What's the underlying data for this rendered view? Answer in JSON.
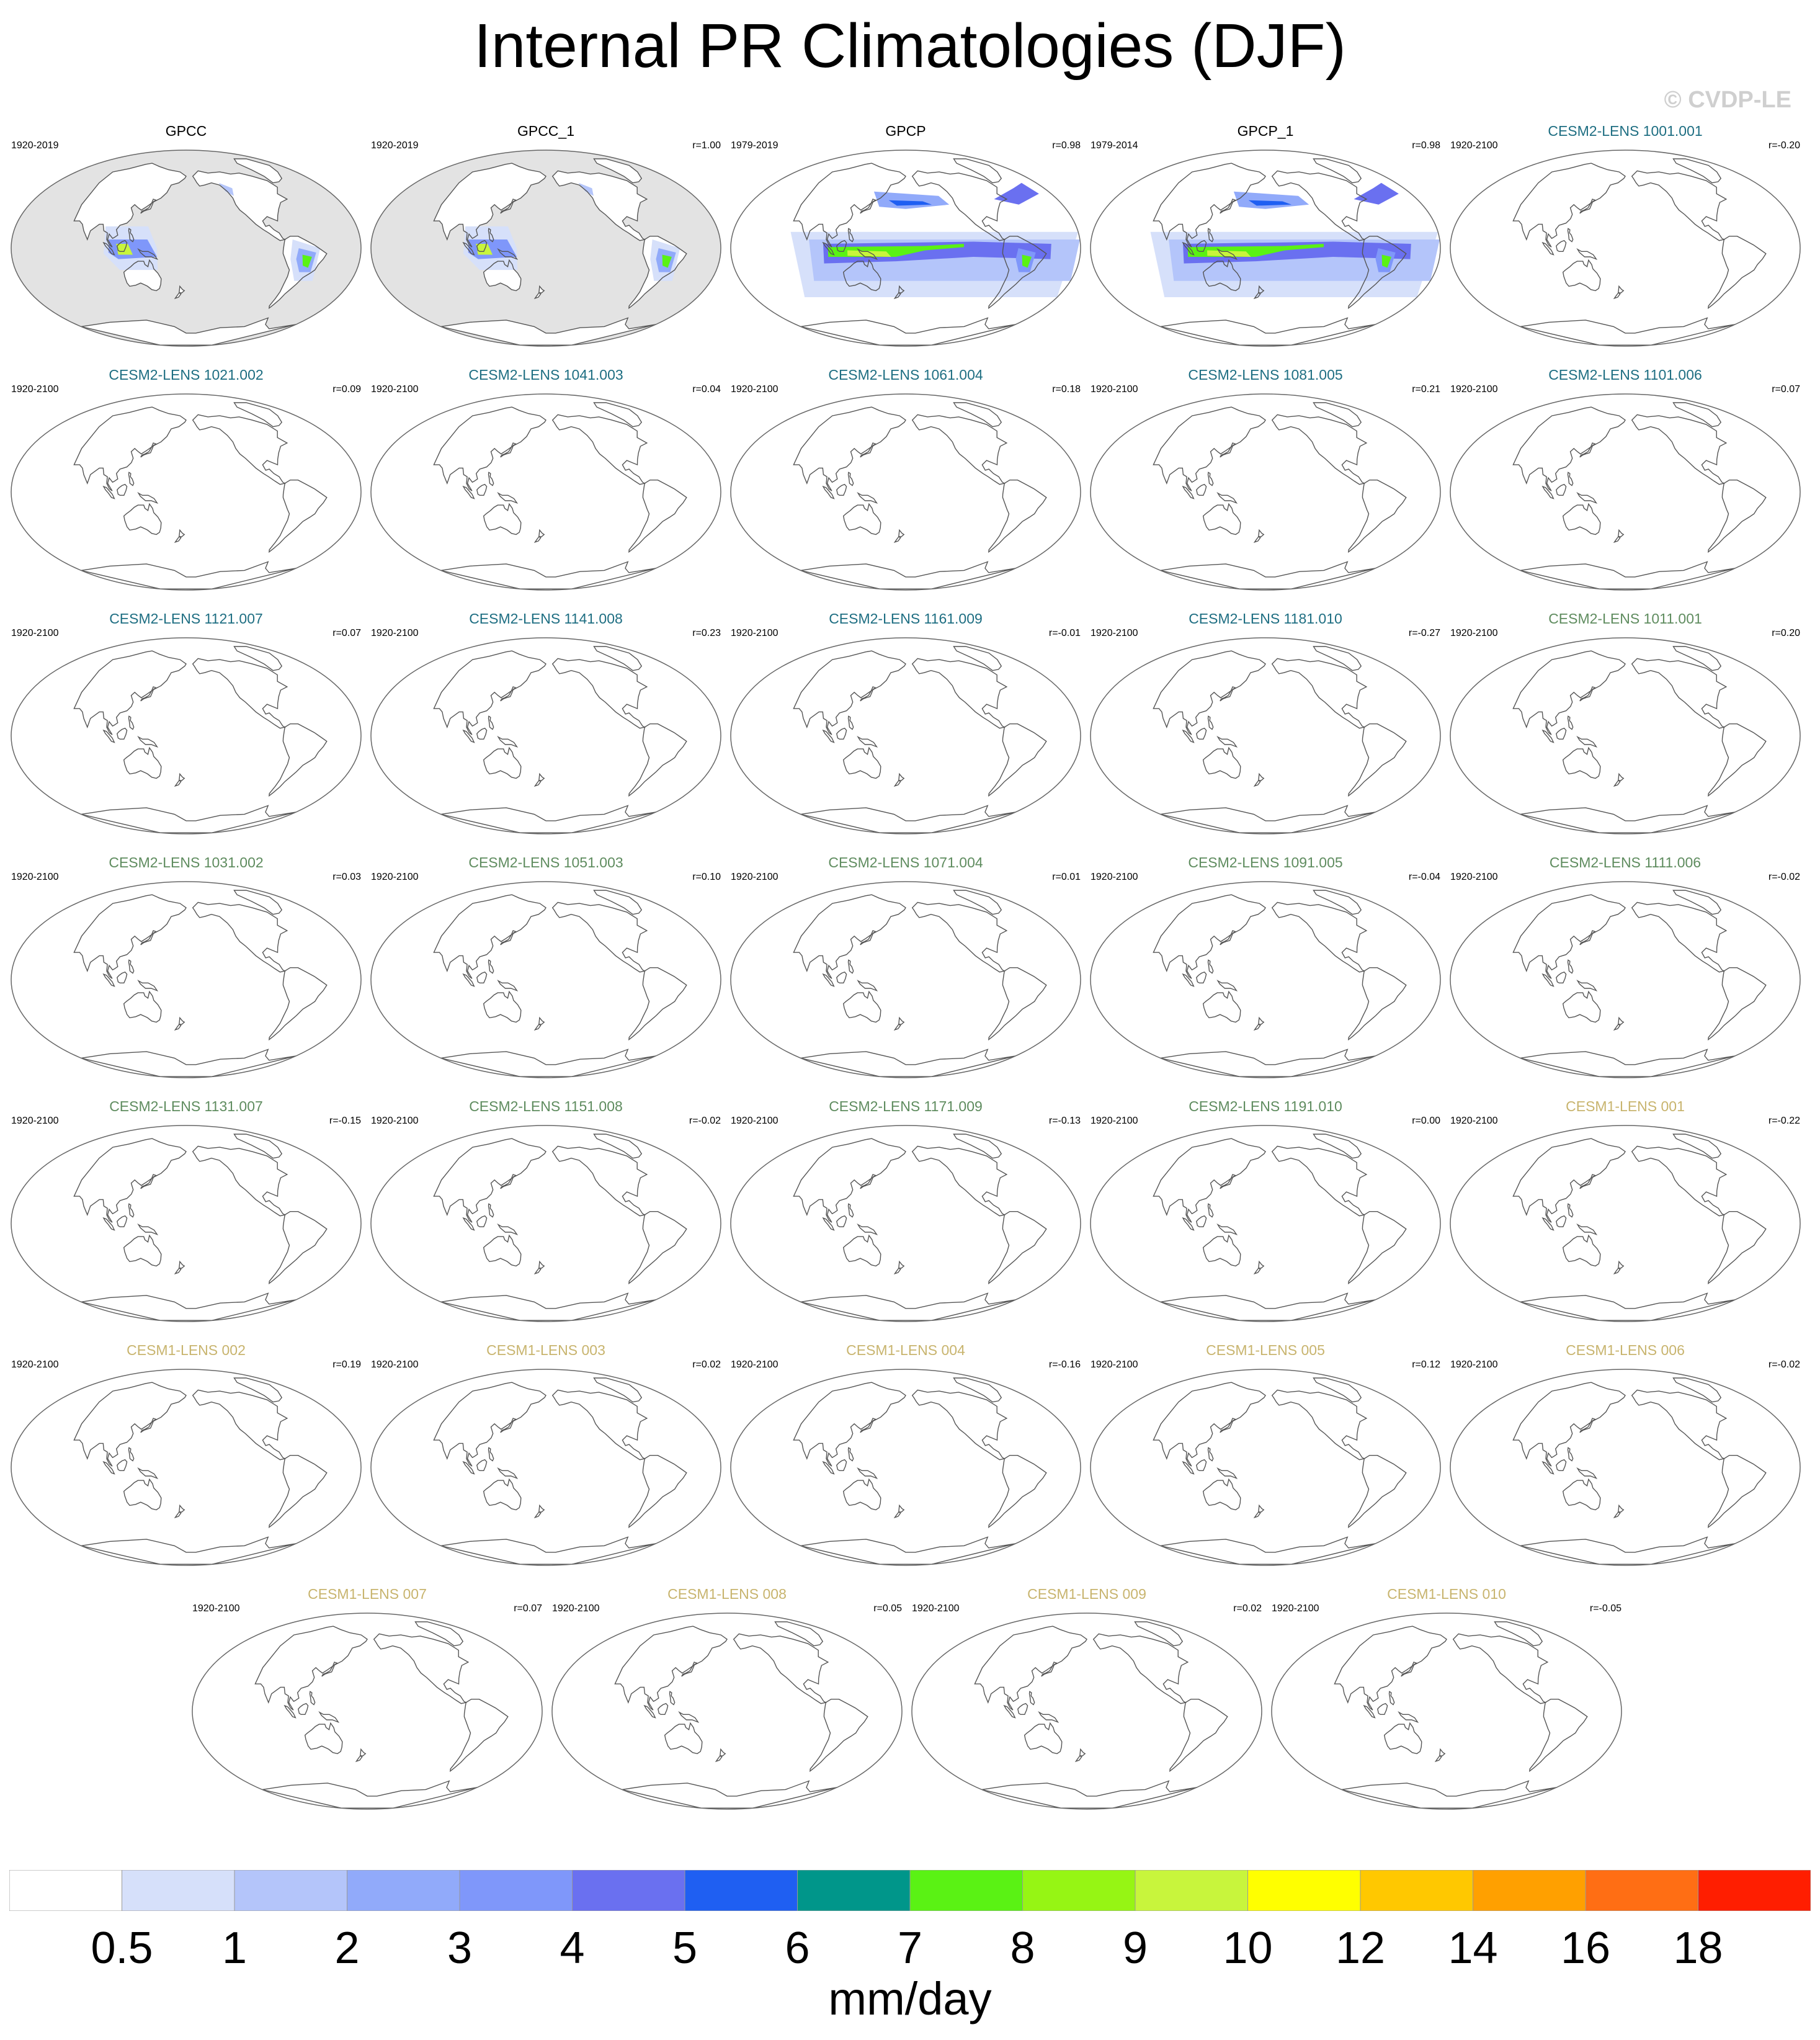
{
  "title": "Internal PR Climatologies (DJF)",
  "copyright": "© CVDP-LE",
  "colors": {
    "land": "#d4d4d4",
    "ocean_fill": "#e3e3e3",
    "coast": "#555555",
    "obs_title": "#000000",
    "cesm2_first": "#1e6e82",
    "cesm2_second": "#5f8c5f",
    "cesm1": "#c8b46e"
  },
  "panels": [
    {
      "title": "GPCC",
      "years": "1920-2019",
      "r": "",
      "group": "obs",
      "pattern": "gpcc"
    },
    {
      "title": "GPCC_1",
      "years": "1920-2019",
      "r": "r=1.00",
      "group": "obs",
      "pattern": "gpcc"
    },
    {
      "title": "GPCP",
      "years": "1979-2019",
      "r": "r=0.98",
      "group": "obs",
      "pattern": "gpcp"
    },
    {
      "title": "GPCP_1",
      "years": "1979-2014",
      "r": "r=0.98",
      "group": "obs",
      "pattern": "gpcp"
    },
    {
      "title": "CESM2-LENS 1001.001",
      "years": "1920-2100",
      "r": "r=-0.20",
      "group": "cesm2a",
      "pattern": "blank"
    },
    {
      "title": "CESM2-LENS 1021.002",
      "years": "1920-2100",
      "r": "r=0.09",
      "group": "cesm2a",
      "pattern": "blank"
    },
    {
      "title": "CESM2-LENS 1041.003",
      "years": "1920-2100",
      "r": "r=0.04",
      "group": "cesm2a",
      "pattern": "blank"
    },
    {
      "title": "CESM2-LENS 1061.004",
      "years": "1920-2100",
      "r": "r=0.18",
      "group": "cesm2a",
      "pattern": "blank"
    },
    {
      "title": "CESM2-LENS 1081.005",
      "years": "1920-2100",
      "r": "r=0.21",
      "group": "cesm2a",
      "pattern": "blank"
    },
    {
      "title": "CESM2-LENS 1101.006",
      "years": "1920-2100",
      "r": "r=0.07",
      "group": "cesm2a",
      "pattern": "blank"
    },
    {
      "title": "CESM2-LENS 1121.007",
      "years": "1920-2100",
      "r": "r=0.07",
      "group": "cesm2a",
      "pattern": "blank"
    },
    {
      "title": "CESM2-LENS 1141.008",
      "years": "1920-2100",
      "r": "r=0.23",
      "group": "cesm2a",
      "pattern": "blank"
    },
    {
      "title": "CESM2-LENS 1161.009",
      "years": "1920-2100",
      "r": "r=-0.01",
      "group": "cesm2a",
      "pattern": "blank"
    },
    {
      "title": "CESM2-LENS 1181.010",
      "years": "1920-2100",
      "r": "r=-0.27",
      "group": "cesm2a",
      "pattern": "blank"
    },
    {
      "title": "CESM2-LENS 1011.001",
      "years": "1920-2100",
      "r": "r=0.20",
      "group": "cesm2b",
      "pattern": "blank"
    },
    {
      "title": "CESM2-LENS 1031.002",
      "years": "1920-2100",
      "r": "r=0.03",
      "group": "cesm2b",
      "pattern": "blank"
    },
    {
      "title": "CESM2-LENS 1051.003",
      "years": "1920-2100",
      "r": "r=0.10",
      "group": "cesm2b",
      "pattern": "blank"
    },
    {
      "title": "CESM2-LENS 1071.004",
      "years": "1920-2100",
      "r": "r=0.01",
      "group": "cesm2b",
      "pattern": "blank"
    },
    {
      "title": "CESM2-LENS 1091.005",
      "years": "1920-2100",
      "r": "r=-0.04",
      "group": "cesm2b",
      "pattern": "blank"
    },
    {
      "title": "CESM2-LENS 1111.006",
      "years": "1920-2100",
      "r": "r=-0.02",
      "group": "cesm2b",
      "pattern": "blank"
    },
    {
      "title": "CESM2-LENS 1131.007",
      "years": "1920-2100",
      "r": "r=-0.15",
      "group": "cesm2b",
      "pattern": "blank"
    },
    {
      "title": "CESM2-LENS 1151.008",
      "years": "1920-2100",
      "r": "r=-0.02",
      "group": "cesm2b",
      "pattern": "blank"
    },
    {
      "title": "CESM2-LENS 1171.009",
      "years": "1920-2100",
      "r": "r=-0.13",
      "group": "cesm2b",
      "pattern": "blank"
    },
    {
      "title": "CESM2-LENS 1191.010",
      "years": "1920-2100",
      "r": "r=0.00",
      "group": "cesm2b",
      "pattern": "blank"
    },
    {
      "title": "CESM1-LENS 001",
      "years": "1920-2100",
      "r": "r=-0.22",
      "group": "cesm1",
      "pattern": "blank"
    },
    {
      "title": "CESM1-LENS 002",
      "years": "1920-2100",
      "r": "r=0.19",
      "group": "cesm1",
      "pattern": "blank"
    },
    {
      "title": "CESM1-LENS 003",
      "years": "1920-2100",
      "r": "r=0.02",
      "group": "cesm1",
      "pattern": "blank"
    },
    {
      "title": "CESM1-LENS 004",
      "years": "1920-2100",
      "r": "r=-0.16",
      "group": "cesm1",
      "pattern": "blank"
    },
    {
      "title": "CESM1-LENS 005",
      "years": "1920-2100",
      "r": "r=0.12",
      "group": "cesm1",
      "pattern": "blank"
    },
    {
      "title": "CESM1-LENS 006",
      "years": "1920-2100",
      "r": "r=-0.02",
      "group": "cesm1",
      "pattern": "blank"
    },
    {
      "title": "CESM1-LENS 007",
      "years": "1920-2100",
      "r": "r=0.07",
      "group": "cesm1",
      "pattern": "blank"
    },
    {
      "title": "CESM1-LENS 008",
      "years": "1920-2100",
      "r": "r=0.05",
      "group": "cesm1",
      "pattern": "blank"
    },
    {
      "title": "CESM1-LENS 009",
      "years": "1920-2100",
      "r": "r=0.02",
      "group": "cesm1",
      "pattern": "blank"
    },
    {
      "title": "CESM1-LENS 010",
      "years": "1920-2100",
      "r": "r=-0.05",
      "group": "cesm1",
      "pattern": "blank"
    }
  ],
  "colorbar": {
    "colors": [
      "#ffffff",
      "#d6e0fa",
      "#b4c5fa",
      "#91aafa",
      "#7f97fa",
      "#6a70f0",
      "#1f5ff2",
      "#00968a",
      "#5af214",
      "#96f514",
      "#c8f53c",
      "#ffff00",
      "#ffc800",
      "#ffa000",
      "#ff6e14",
      "#ff1e00"
    ],
    "labels": [
      "0.5",
      "1",
      "2",
      "3",
      "4",
      "5",
      "6",
      "7",
      "8",
      "9",
      "10",
      "12",
      "14",
      "16",
      "18"
    ],
    "units": "mm/day"
  }
}
